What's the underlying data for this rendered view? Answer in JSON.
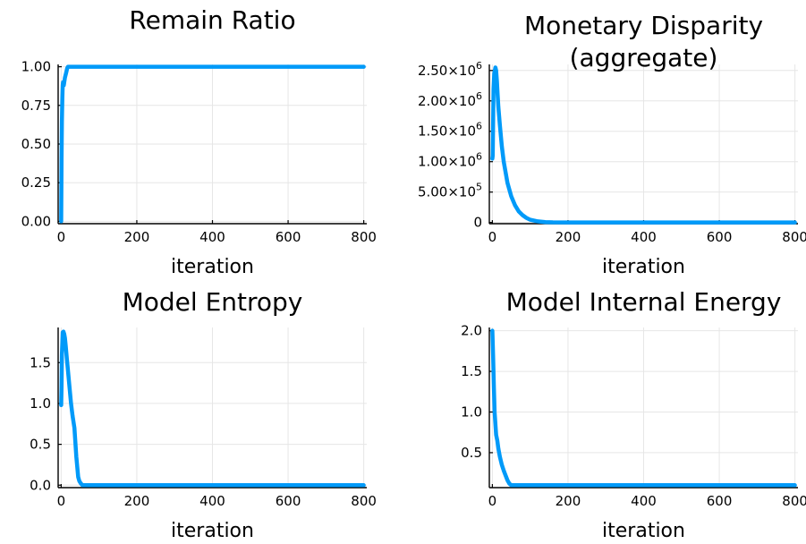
{
  "colors": {
    "series": "#009af9",
    "grid": "#e6e6e6",
    "axis": "#000000"
  },
  "chart_data": [
    {
      "type": "line",
      "title": [
        "Remain Ratio"
      ],
      "xlabel": "iteration",
      "ylabel": "",
      "xlim": [
        -8,
        808
      ],
      "ylim": [
        -0.015,
        1.015
      ],
      "xticks": [
        0,
        200,
        400,
        600,
        800
      ],
      "xtick_labels": [
        "0",
        "200",
        "400",
        "600",
        "800"
      ],
      "yticks": [
        0,
        0.25,
        0.5,
        0.75,
        1.0
      ],
      "ytick_labels": [
        "0.00",
        "0.25",
        "0.50",
        "0.75",
        "1.00"
      ],
      "grid": true,
      "legend": "none",
      "series": [
        {
          "x": [
            0,
            0.5,
            1,
            2,
            3,
            4,
            5,
            6,
            7,
            8,
            10,
            12,
            14,
            16,
            18,
            20,
            22,
            800
          ],
          "y": [
            0.0,
            0.2,
            0.4,
            0.65,
            0.8,
            0.88,
            0.9,
            0.9,
            0.88,
            0.9,
            0.93,
            0.95,
            0.97,
            0.99,
            1.0,
            1.0,
            1.0,
            1.0
          ]
        }
      ]
    },
    {
      "type": "line",
      "title": [
        "Monetary Disparity",
        "(aggregate)"
      ],
      "xlabel": "iteration",
      "ylabel": "",
      "xlim": [
        -8,
        808
      ],
      "ylim": [
        -20000,
        2600000
      ],
      "xticks": [
        0,
        200,
        400,
        600,
        800
      ],
      "xtick_labels": [
        "0",
        "200",
        "400",
        "600",
        "800"
      ],
      "yticks": [
        0,
        500000,
        1000000,
        1500000,
        2000000,
        2500000
      ],
      "ytick_labels": [
        {
          "base": "0",
          "exp": ""
        },
        {
          "base": "5.00×10",
          "exp": "5"
        },
        {
          "base": "1.00×10",
          "exp": "6"
        },
        {
          "base": "1.50×10",
          "exp": "6"
        },
        {
          "base": "2.00×10",
          "exp": "6"
        },
        {
          "base": "2.50×10",
          "exp": "6"
        }
      ],
      "grid": true,
      "legend": "none",
      "series": [
        {
          "x": [
            0,
            1,
            3,
            5,
            8,
            10,
            12,
            14,
            16,
            20,
            25,
            30,
            40,
            50,
            60,
            70,
            80,
            90,
            100,
            120,
            140,
            160,
            200,
            800
          ],
          "y": [
            1050000,
            1100000,
            2200000,
            2450000,
            2550000,
            2500000,
            2320000,
            2100000,
            1900000,
            1600000,
            1250000,
            1000000,
            650000,
            430000,
            280000,
            180000,
            120000,
            75000,
            45000,
            18000,
            7000,
            2000,
            0,
            0
          ]
        }
      ]
    },
    {
      "type": "line",
      "title": [
        "Model Entropy"
      ],
      "xlabel": "iteration",
      "ylabel": "",
      "xlim": [
        -8,
        808
      ],
      "ylim": [
        -0.03,
        1.93
      ],
      "xticks": [
        0,
        200,
        400,
        600,
        800
      ],
      "xtick_labels": [
        "0",
        "200",
        "400",
        "600",
        "800"
      ],
      "yticks": [
        0,
        0.5,
        1.0,
        1.5
      ],
      "ytick_labels": [
        "0.0",
        "0.5",
        "1.0",
        "1.5"
      ],
      "grid": true,
      "legend": "none",
      "series": [
        {
          "x": [
            0,
            1,
            2,
            4,
            6,
            8,
            10,
            12,
            15,
            18,
            22,
            26,
            30,
            35,
            40,
            45,
            48,
            52,
            56,
            60,
            800
          ],
          "y": [
            0.98,
            1.2,
            1.6,
            1.87,
            1.88,
            1.85,
            1.8,
            1.7,
            1.55,
            1.4,
            1.2,
            1.0,
            0.85,
            0.7,
            0.35,
            0.1,
            0.05,
            0.02,
            0.0,
            0.0,
            0.0
          ]
        }
      ]
    },
    {
      "type": "line",
      "title": [
        "Model Internal Energy"
      ],
      "xlabel": "iteration",
      "ylabel": "",
      "xlim": [
        -8,
        808
      ],
      "ylim": [
        0.07,
        2.04
      ],
      "xticks": [
        0,
        200,
        400,
        600,
        800
      ],
      "xtick_labels": [
        "0",
        "200",
        "400",
        "600",
        "800"
      ],
      "yticks": [
        0.5,
        1.0,
        1.5,
        2.0
      ],
      "ytick_labels": [
        "0.5",
        "1.0",
        "1.5",
        "2.0"
      ],
      "grid": true,
      "legend": "none",
      "series": [
        {
          "x": [
            0,
            2,
            4,
            6,
            8,
            10,
            13,
            16,
            20,
            25,
            30,
            35,
            40,
            45,
            50,
            55,
            60,
            800
          ],
          "y": [
            2.0,
            1.7,
            1.3,
            1.0,
            0.85,
            0.72,
            0.65,
            0.55,
            0.45,
            0.35,
            0.28,
            0.22,
            0.16,
            0.12,
            0.1,
            0.1,
            0.1,
            0.1
          ]
        }
      ]
    }
  ]
}
